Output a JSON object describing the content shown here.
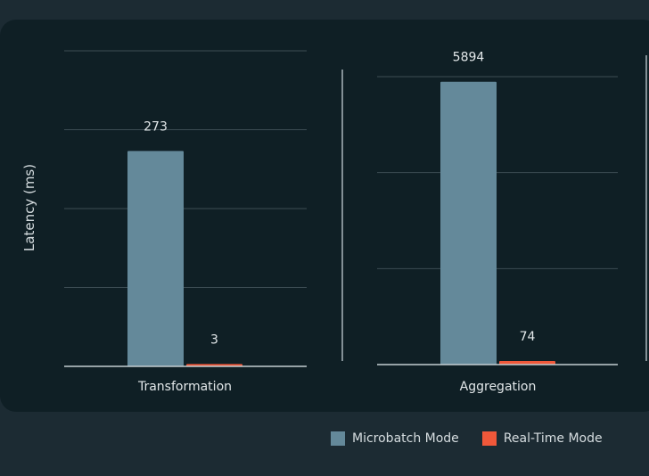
{
  "colors": {
    "page_background": "#1c2b33",
    "card_background": "#0f1f25",
    "grid": "#3c4c53",
    "divider": "#aab6bb",
    "microbatch": "#64899a",
    "realtime": "#f0583a"
  },
  "legend": {
    "items": [
      {
        "label": "Microbatch Mode",
        "color": "#64899a"
      },
      {
        "label": "Real-Time Mode",
        "color": "#f0583a"
      }
    ]
  },
  "chart_data": [
    {
      "type": "bar",
      "categories": [
        "Transformation"
      ],
      "series": [
        {
          "name": "Microbatch Mode",
          "values": [
            273
          ]
        },
        {
          "name": "Real-Time Mode",
          "values": [
            3
          ]
        }
      ],
      "ylabel": "Latency (ms)",
      "ylim": [
        0,
        400
      ],
      "grid": true,
      "data_labels": true
    },
    {
      "type": "bar",
      "categories": [
        "Aggregation"
      ],
      "series": [
        {
          "name": "Microbatch Mode",
          "values": [
            5894
          ]
        },
        {
          "name": "Real-Time Mode",
          "values": [
            74
          ]
        }
      ],
      "ylabel": "",
      "ylim": [
        0,
        6000
      ],
      "grid": true,
      "data_labels": true
    }
  ]
}
